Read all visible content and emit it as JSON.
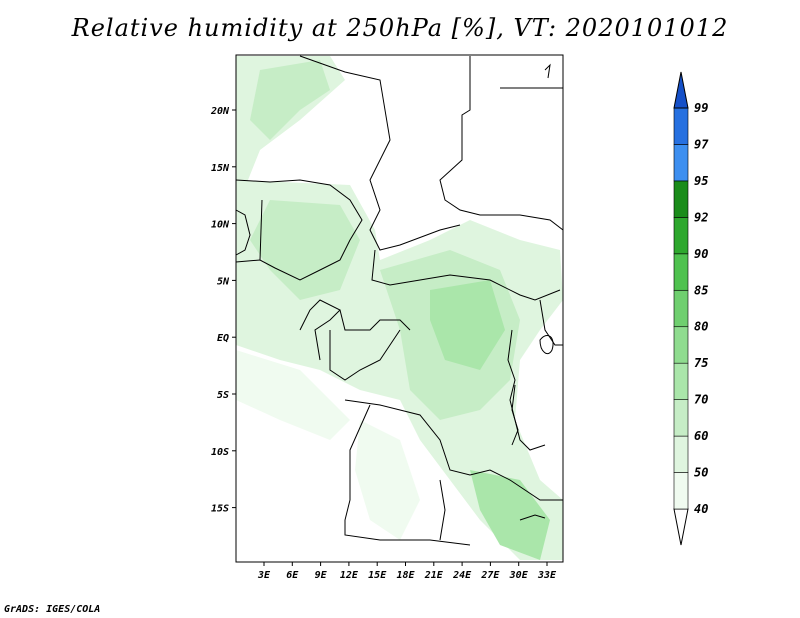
{
  "title": "Relative humidity at 250hPa [%], VT: 2020101012",
  "footer": "GrADS: IGES/COLA",
  "map": {
    "lat_ticks": [
      "20N",
      "15N",
      "10N",
      "5N",
      "EQ",
      "5S",
      "10S",
      "15S"
    ],
    "lon_ticks": [
      "3E",
      "6E",
      "9E",
      "12E",
      "15E",
      "18E",
      "21E",
      "24E",
      "27E",
      "30E",
      "33E"
    ]
  },
  "colorbar": {
    "levels": [
      "40",
      "50",
      "60",
      "70",
      "75",
      "80",
      "85",
      "90",
      "92",
      "95",
      "97",
      "99"
    ],
    "colors": [
      "#f0fbf0",
      "#dff5df",
      "#c6edc6",
      "#aae6aa",
      "#8fdc8f",
      "#6fcf6f",
      "#4fc24f",
      "#2ea82e",
      "#1a8c1a",
      "#3d8ff0",
      "#2670e0",
      "#1550c8"
    ]
  },
  "colors": {
    "field_light": "#dff5df",
    "field_mid": "#c6edc6",
    "field_dark": "#aae6aa"
  }
}
